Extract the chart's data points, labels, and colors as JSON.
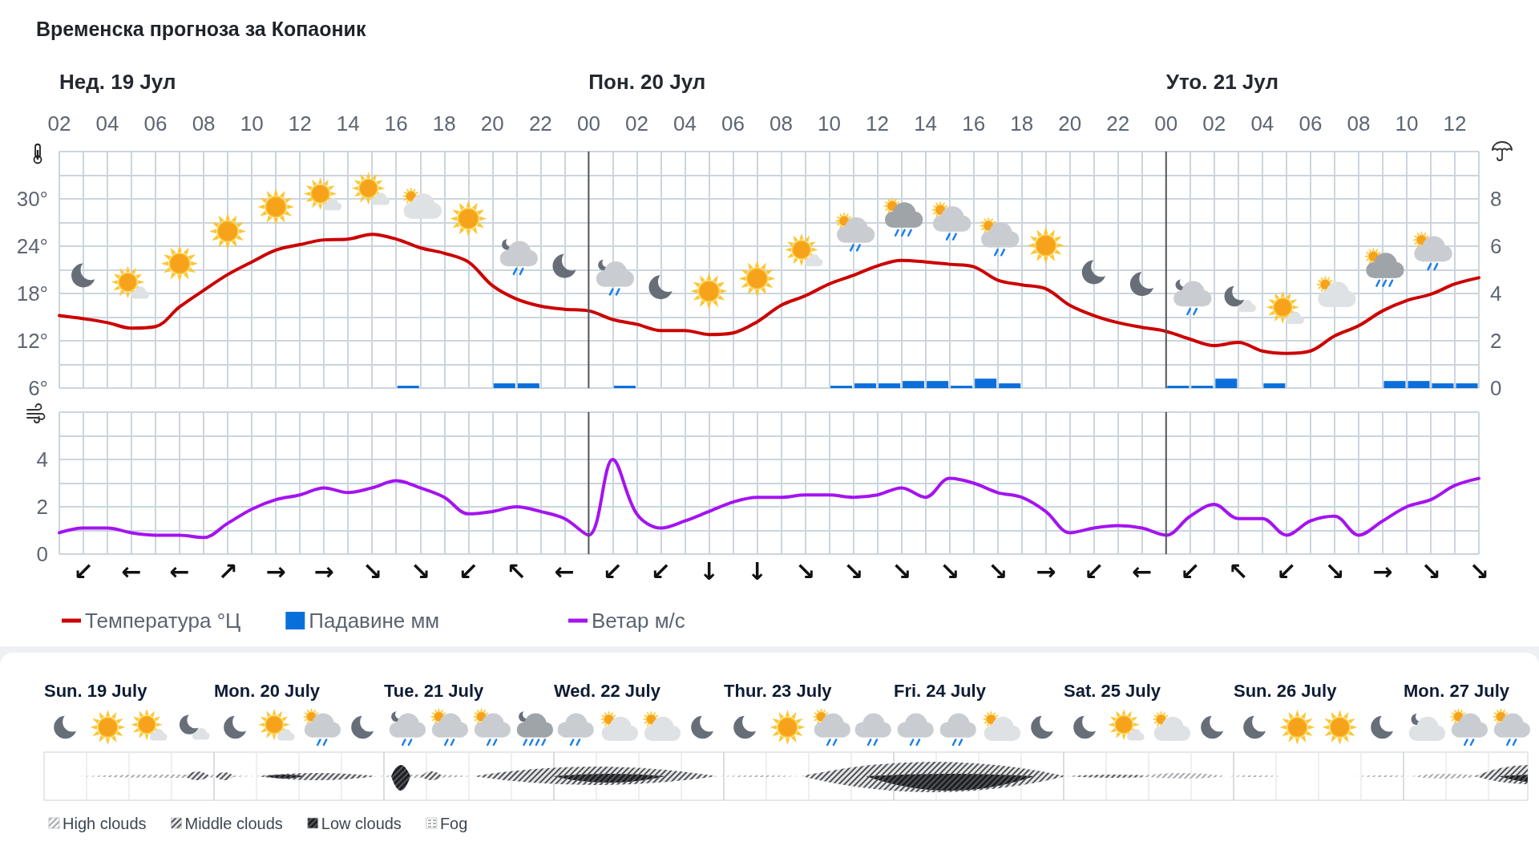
{
  "chart_data": [
    {
      "type": "line",
      "title": "Временска прогноза за Копаоник",
      "x": [
        2,
        3,
        4,
        5,
        6,
        7,
        8,
        9,
        10,
        11,
        12,
        13,
        14,
        15,
        16,
        17,
        18,
        19,
        20,
        21,
        22,
        23,
        24,
        25,
        26,
        27,
        28,
        29,
        30,
        31,
        32,
        33,
        34,
        35,
        36,
        37,
        38,
        39,
        40,
        41,
        42,
        43,
        44,
        45,
        46,
        47,
        48,
        49,
        50,
        51,
        52,
        53,
        54,
        55,
        56,
        57,
        58,
        59,
        60,
        61
      ],
      "series": [
        {
          "name": "Температура °Ц",
          "color": "#cc0000",
          "values": [
            15.2,
            14.8,
            14.3,
            13.6,
            13.8,
            16.3,
            18.4,
            20.4,
            22.0,
            23.5,
            24.2,
            24.8,
            24.9,
            25.5,
            24.9,
            23.8,
            23.1,
            22.0,
            19.0,
            17.3,
            16.4,
            16.0,
            15.8,
            14.7,
            14.1,
            13.3,
            13.3,
            12.8,
            13.0,
            14.4,
            16.5,
            17.7,
            19.2,
            20.3,
            21.5,
            22.2,
            22.0,
            21.7,
            21.4,
            19.7,
            19.1,
            18.6,
            16.5,
            15.2,
            14.3,
            13.7,
            13.2,
            12.2,
            11.4,
            11.8,
            10.7,
            10.4,
            10.7,
            12.6,
            13.9,
            15.8,
            17.1,
            17.9,
            19.2,
            20.0
          ]
        },
        {
          "name": "Падавине мм",
          "type": "bar",
          "axis": "y2",
          "color": "#0b6fdb",
          "x": [
            16.5,
            20.5,
            21.5,
            25.5,
            34.5,
            35.5,
            36.5,
            37.5,
            38.5,
            39.5,
            40.5,
            41.5,
            48.5,
            49.5,
            50.5,
            52.5,
            57.5,
            58.5,
            59.5,
            60.5
          ],
          "values": [
            0.1,
            0.2,
            0.2,
            0.1,
            0.1,
            0.2,
            0.2,
            0.3,
            0.3,
            0.1,
            0.4,
            0.2,
            0.1,
            0.1,
            0.4,
            0.2,
            0.3,
            0.3,
            0.2,
            0.2
          ]
        }
      ],
      "xlim": [
        2,
        61
      ],
      "xticks": [
        {
          "value": 2,
          "label": "02"
        },
        {
          "value": 3,
          "label": null
        },
        {
          "value": 4,
          "label": "04"
        },
        {
          "value": 5,
          "label": null
        },
        {
          "value": 6,
          "label": "06"
        },
        {
          "value": 7,
          "label": null
        },
        {
          "value": 8,
          "label": "08"
        },
        {
          "value": 9,
          "label": null
        },
        10,
        {
          "value": 11,
          "label": null
        },
        12,
        {
          "value": 13,
          "label": null
        },
        14,
        {
          "value": 15,
          "label": null
        },
        16,
        {
          "value": 17,
          "label": null
        },
        18,
        {
          "value": 19,
          "label": null
        },
        20,
        {
          "value": 21,
          "label": null
        },
        22,
        {
          "value": 23,
          "label": null
        },
        {
          "value": 24,
          "label": "00"
        },
        {
          "value": 25,
          "label": null
        },
        {
          "value": 26,
          "label": "02"
        },
        {
          "value": 27,
          "label": null
        },
        {
          "value": 28,
          "label": "04"
        },
        {
          "value": 29,
          "label": null
        },
        {
          "value": 30,
          "label": "06"
        },
        {
          "value": 31,
          "label": null
        },
        {
          "value": 32,
          "label": "08"
        },
        {
          "value": 33,
          "label": null
        },
        {
          "value": 34,
          "label": "10"
        },
        {
          "value": 35,
          "label": null
        },
        {
          "value": 36,
          "label": "12"
        },
        {
          "value": 37,
          "label": null
        },
        {
          "value": 38,
          "label": "14"
        },
        {
          "value": 39,
          "label": null
        },
        {
          "value": 40,
          "label": "16"
        },
        {
          "value": 41,
          "label": null
        },
        {
          "value": 42,
          "label": "18"
        },
        {
          "value": 43,
          "label": null
        },
        {
          "value": 44,
          "label": "20"
        },
        {
          "value": 45,
          "label": null
        },
        {
          "value": 46,
          "label": "22"
        },
        {
          "value": 47,
          "label": null
        },
        {
          "value": 48,
          "label": "00"
        },
        {
          "value": 49,
          "label": null
        },
        {
          "value": 50,
          "label": "02"
        },
        {
          "value": 51,
          "label": null
        },
        {
          "value": 52,
          "label": "04"
        },
        {
          "value": 53,
          "label": null
        },
        {
          "value": 54,
          "label": "06"
        },
        {
          "value": 55,
          "label": null
        },
        {
          "value": 56,
          "label": "08"
        },
        {
          "value": 57,
          "label": null
        },
        {
          "value": 58,
          "label": "10"
        },
        {
          "value": 59,
          "label": null
        },
        {
          "value": 60,
          "label": "12"
        },
        {
          "value": 61,
          "label": null
        }
      ],
      "ylim": [
        6,
        36
      ],
      "yticks": [
        {
          "value": 6,
          "label": "6°"
        },
        {
          "value": 9,
          "label": null
        },
        {
          "value": 12,
          "label": "12°"
        },
        {
          "value": 15,
          "label": null
        },
        {
          "value": 18,
          "label": "18°"
        },
        {
          "value": 21,
          "label": null
        },
        {
          "value": 24,
          "label": "24°"
        },
        {
          "value": 27,
          "label": null
        },
        {
          "value": 30,
          "label": "30°"
        },
        {
          "value": 33,
          "label": null
        }
      ],
      "y2lim": [
        0,
        10
      ],
      "y2ticks": [
        0,
        2,
        4,
        6,
        8
      ],
      "grid": true,
      "legend": "bottom left",
      "annotations": [
        "Нед. 19 Јул"
      ],
      "ref_lines": [
        {
          "axis": "x",
          "value": 24,
          "label": "Пон. 20 Јул",
          "color": "#4f555c"
        },
        {
          "axis": "x",
          "value": 48,
          "label": "Уто. 21 Јул",
          "color": "#4f555c"
        }
      ]
    },
    {
      "type": "line",
      "x": [
        2,
        3,
        4,
        5,
        6,
        7,
        8,
        9,
        10,
        11,
        12,
        13,
        14,
        15,
        16,
        17,
        18,
        19,
        20,
        21,
        22,
        23,
        24,
        25,
        26,
        27,
        28,
        29,
        30,
        31,
        32,
        33,
        34,
        35,
        36,
        37,
        38,
        39,
        40,
        41,
        42,
        43,
        44,
        45,
        46,
        47,
        48,
        49,
        50,
        51,
        52,
        53,
        54,
        55,
        56,
        57,
        58,
        59,
        60,
        61
      ],
      "series": [
        {
          "name": "Ветар м/с",
          "color": "#a414f0",
          "values": [
            0.9,
            1.1,
            1.1,
            0.9,
            0.8,
            0.8,
            0.7,
            1.3,
            1.9,
            2.3,
            2.5,
            2.8,
            2.6,
            2.8,
            3.1,
            2.8,
            2.4,
            1.7,
            1.8,
            2.0,
            1.8,
            1.5,
            0.8,
            4.0,
            1.7,
            1.1,
            1.4,
            1.8,
            2.2,
            2.4,
            2.4,
            2.5,
            2.5,
            2.4,
            2.5,
            2.8,
            2.4,
            3.2,
            3.0,
            2.6,
            2.4,
            1.8,
            0.9,
            1.1,
            1.2,
            1.1,
            0.8,
            1.6,
            2.1,
            1.5,
            1.5,
            0.8,
            1.4,
            1.6,
            0.8,
            1.4,
            2.0,
            2.3,
            2.9,
            3.2
          ]
        }
      ],
      "xlim": [
        2,
        61
      ],
      "xticks": [
        2,
        3,
        4,
        5,
        6,
        7,
        8,
        9,
        10,
        11,
        12,
        13,
        14,
        15,
        16,
        17,
        18,
        19,
        20,
        21,
        22,
        23,
        24,
        25,
        26,
        27,
        28,
        29,
        30,
        31,
        32,
        33,
        34,
        35,
        36,
        37,
        38,
        39,
        40,
        41,
        42,
        43,
        44,
        45,
        46,
        47,
        48,
        49,
        50,
        51,
        52,
        53,
        54,
        55,
        56,
        57,
        58,
        59,
        60,
        61
      ],
      "tick_labels": "y",
      "ylim": [
        0,
        6
      ],
      "yticks": [
        0,
        {
          "value": 1,
          "label": null
        },
        2,
        {
          "value": 3,
          "label": null
        },
        4,
        {
          "value": 5,
          "label": null
        }
      ],
      "grid": true,
      "legend": "bottom",
      "annotations": [
        "↙",
        "←",
        "←",
        "↗",
        "→",
        "→",
        "↘",
        "↘",
        "↙",
        "↖",
        "←",
        "↙",
        "↙",
        "↓",
        "↓",
        "↘",
        "↘",
        "↘",
        "↘",
        "↘",
        "→",
        "↙",
        "←",
        "↙",
        "↖",
        "↙",
        "↘",
        "→",
        "↘",
        "↘"
      ],
      "ref_lines": [
        {
          "axis": "x",
          "value": 24,
          "color": "#4f555c"
        },
        {
          "axis": "x",
          "value": 48,
          "color": "#4f555c"
        }
      ]
    },
    {
      "type": "other",
      "categories": [
        "Sun. 19 July",
        "Mon. 20 July",
        "Tue. 21 July",
        "Wed. 22 July",
        "Thur. 23 July",
        "Fri. 24 July",
        "Sat. 25 July",
        "Sun. 26 July",
        "Mon. 27 July"
      ],
      "annotations": [
        "High clouds",
        "Middle clouds",
        "Low clouds",
        "Fog"
      ]
    }
  ]
}
